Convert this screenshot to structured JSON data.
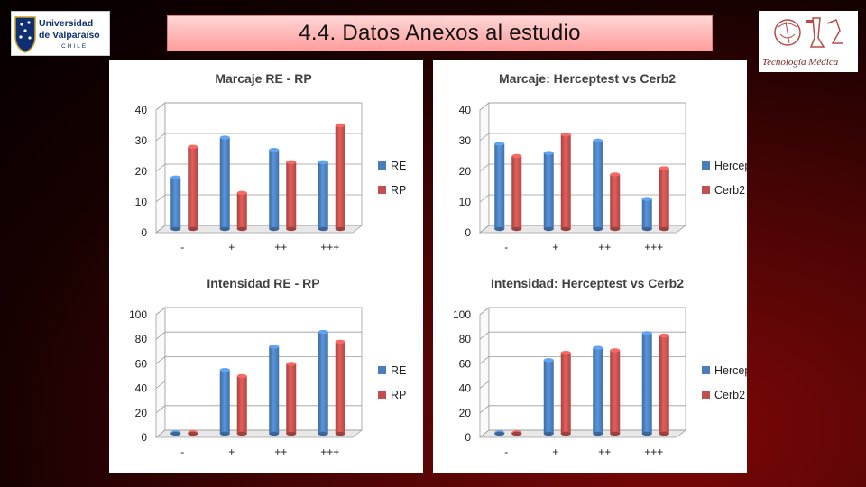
{
  "header": {
    "title": "4.4. Datos Anexos al estudio",
    "logo_left": {
      "line1": "Universidad",
      "line2": "de Valparaíso",
      "line3": "CHILE"
    },
    "logo_right": {
      "text": "Tecnología Médica"
    }
  },
  "colors": {
    "series_blue": "#4a7ebb",
    "series_red": "#c0504d"
  },
  "chart_data": [
    {
      "type": "bar",
      "title": "Marcaje RE - RP",
      "categories": [
        "-",
        "+",
        "++",
        "+++"
      ],
      "series": [
        {
          "name": "RE",
          "values": [
            18,
            31,
            27,
            23
          ]
        },
        {
          "name": "RP",
          "values": [
            28,
            13,
            23,
            35
          ]
        }
      ],
      "ylim": [
        0,
        40
      ],
      "yticks": [
        0,
        10,
        20,
        30,
        40
      ],
      "legend": "right",
      "grid": false
    },
    {
      "type": "bar",
      "title": "Marcaje: Herceptest vs Cerb2",
      "categories": [
        "-",
        "+",
        "++",
        "+++"
      ],
      "series": [
        {
          "name": "Herceptest",
          "values": [
            29,
            26,
            30,
            11
          ]
        },
        {
          "name": "Cerb2",
          "values": [
            25,
            32,
            19,
            21
          ]
        }
      ],
      "ylim": [
        0,
        40
      ],
      "yticks": [
        0,
        10,
        20,
        30,
        40
      ],
      "legend": "right",
      "grid": false
    },
    {
      "type": "bar",
      "title": "Intensidad RE - RP",
      "categories": [
        "-",
        "+",
        "++",
        "+++"
      ],
      "series": [
        {
          "name": "RE",
          "values": [
            1,
            55,
            74,
            86
          ]
        },
        {
          "name": "RP",
          "values": [
            1,
            50,
            60,
            78
          ]
        }
      ],
      "ylim": [
        0,
        100
      ],
      "yticks": [
        0,
        20,
        40,
        60,
        80,
        100
      ],
      "legend": "right",
      "grid": false
    },
    {
      "type": "bar",
      "title": "Intensidad: Herceptest vs Cerb2",
      "categories": [
        "-",
        "+",
        "++",
        "+++"
      ],
      "series": [
        {
          "name": "Herceptest",
          "values": [
            1,
            63,
            73,
            85
          ]
        },
        {
          "name": "Cerb2",
          "values": [
            1,
            69,
            71,
            83
          ]
        }
      ],
      "ylim": [
        0,
        100
      ],
      "yticks": [
        0,
        20,
        40,
        60,
        80,
        100
      ],
      "legend": "right",
      "grid": false
    }
  ]
}
